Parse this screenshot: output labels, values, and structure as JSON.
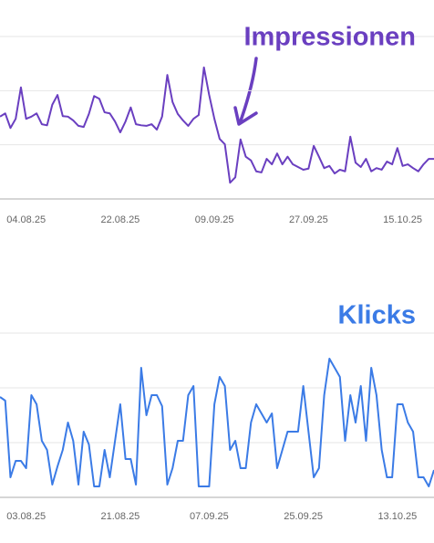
{
  "chart_data": [
    {
      "type": "line",
      "annotation": "Impressionen",
      "color": "#6a3fc0",
      "ylim": [
        0,
        300
      ],
      "yticks": [
        100,
        200,
        300
      ],
      "grid": true,
      "categories": [
        null,
        null,
        null,
        null,
        null,
        "04.08.25",
        null,
        null,
        null,
        null,
        null,
        null,
        null,
        null,
        null,
        null,
        null,
        null,
        null,
        null,
        null,
        null,
        null,
        "22.08.25",
        null,
        null,
        null,
        null,
        null,
        null,
        null,
        null,
        null,
        null,
        null,
        null,
        null,
        null,
        null,
        null,
        null,
        "09.09.25",
        null,
        null,
        null,
        null,
        null,
        null,
        null,
        null,
        null,
        null,
        null,
        null,
        null,
        null,
        null,
        null,
        null,
        "27.09.25",
        null,
        null,
        null,
        null,
        null,
        null,
        null,
        null,
        null,
        null,
        null,
        null,
        null,
        null,
        null,
        null,
        null,
        "15.10.25",
        null,
        null,
        null,
        null,
        null,
        null
      ],
      "values": [
        152,
        158,
        131,
        148,
        206,
        148,
        152,
        158,
        138,
        136,
        174,
        192,
        153,
        152,
        145,
        135,
        133,
        157,
        190,
        185,
        160,
        158,
        143,
        123,
        143,
        169,
        138,
        136,
        135,
        138,
        128,
        152,
        229,
        179,
        157,
        145,
        135,
        148,
        155,
        243,
        192,
        148,
        111,
        101,
        30,
        40,
        110,
        78,
        71,
        51,
        49,
        74,
        64,
        84,
        64,
        78,
        64,
        59,
        54,
        56,
        98,
        78,
        57,
        61,
        47,
        54,
        51,
        115,
        67,
        59,
        74,
        51,
        57,
        54,
        69,
        64,
        94,
        61,
        64,
        57,
        51,
        64,
        74,
        74
      ]
    },
    {
      "type": "line",
      "annotation": "Klicks",
      "color": "#3b7be6",
      "ylim": [
        0,
        9
      ],
      "yticks": [
        3,
        6,
        9
      ],
      "grid": true,
      "categories": [
        null,
        null,
        null,
        null,
        null,
        "03.08.25",
        null,
        null,
        null,
        null,
        null,
        null,
        null,
        null,
        null,
        null,
        null,
        null,
        null,
        null,
        null,
        null,
        null,
        "21.08.25",
        null,
        null,
        null,
        null,
        null,
        null,
        null,
        null,
        null,
        null,
        null,
        null,
        null,
        null,
        null,
        null,
        "07.09.25",
        null,
        null,
        null,
        null,
        null,
        null,
        null,
        null,
        null,
        null,
        null,
        null,
        null,
        null,
        null,
        null,
        null,
        "25.09.25",
        null,
        null,
        null,
        null,
        null,
        null,
        null,
        null,
        null,
        null,
        null,
        null,
        null,
        null,
        null,
        null,
        null,
        "13.10.25",
        null,
        null,
        null,
        null,
        null,
        null,
        null
      ],
      "values": [
        5.5,
        5.3,
        1.1,
        2.0,
        2.0,
        1.6,
        5.6,
        5.1,
        3.1,
        2.6,
        0.7,
        1.7,
        2.6,
        4.1,
        3.1,
        0.7,
        3.6,
        2.9,
        0.6,
        0.6,
        2.6,
        1.1,
        3.1,
        5.1,
        2.1,
        2.1,
        0.7,
        7.1,
        4.5,
        5.6,
        5.6,
        5.0,
        0.7,
        1.6,
        3.1,
        3.1,
        5.6,
        6.1,
        0.6,
        0.6,
        0.6,
        5.1,
        6.6,
        6.1,
        2.6,
        3.1,
        1.6,
        1.6,
        4.1,
        5.1,
        4.6,
        4.1,
        4.6,
        1.6,
        2.6,
        3.6,
        3.6,
        3.6,
        6.1,
        3.6,
        1.1,
        1.6,
        5.6,
        7.6,
        7.1,
        6.6,
        3.1,
        5.6,
        4.1,
        6.1,
        3.1,
        7.1,
        5.6,
        2.6,
        1.1,
        1.1,
        5.1,
        5.1,
        4.1,
        3.6,
        1.1,
        1.1,
        0.6,
        1.5
      ]
    }
  ]
}
